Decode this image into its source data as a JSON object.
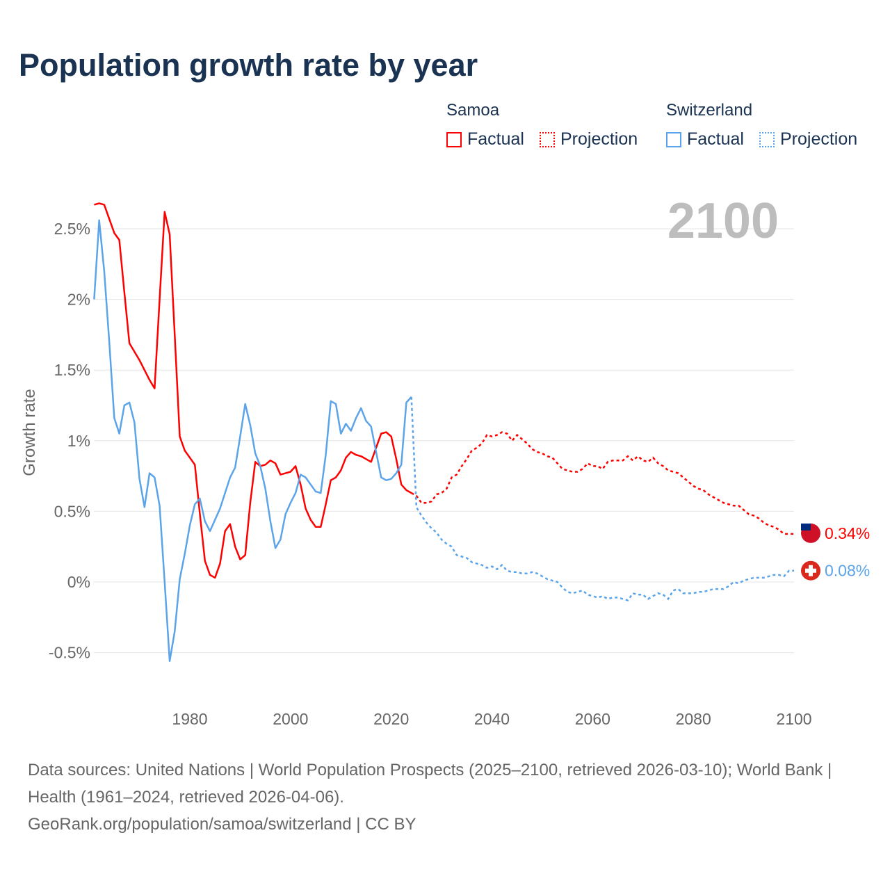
{
  "title": "Population growth rate by year",
  "legend": {
    "groups": [
      {
        "name": "Samoa",
        "color": "#ff0000",
        "factual": "Factual",
        "projection": "Projection"
      },
      {
        "name": "Switzerland",
        "color": "#5ba4ea",
        "factual": "Factual",
        "projection": "Projection"
      }
    ]
  },
  "footer": {
    "sources": "Data sources: United Nations | World Population Prospects (2025–2100, retrieved 2026-03-10); World Bank | Health (1961–2024, retrieved 2026-04-06).",
    "link": "GeoRank.org/population/samoa/switzerland | CC BY"
  },
  "chart_data": {
    "type": "line",
    "title": "Population growth rate by year",
    "ylabel": "Growth rate",
    "xlabel": "",
    "current_year_label": "2100",
    "xlim": [
      1961,
      2100
    ],
    "ylim": [
      -0.7,
      2.8
    ],
    "x_ticks": [
      1980,
      2000,
      2020,
      2040,
      2060,
      2080,
      2100
    ],
    "y_ticks": [
      {
        "v": -0.5,
        "label": "-0.5%"
      },
      {
        "v": 0,
        "label": "0%"
      },
      {
        "v": 0.5,
        "label": "0.5%"
      },
      {
        "v": 1,
        "label": "1%"
      },
      {
        "v": 1.5,
        "label": "1.5%"
      },
      {
        "v": 2,
        "label": "2%"
      },
      {
        "v": 2.5,
        "label": "2.5%"
      }
    ],
    "grid": true,
    "series": [
      {
        "name": "Samoa",
        "color": "#ff0000",
        "end_label": "0.34%",
        "flag_color": "#ce1126",
        "factual_start": 1961,
        "factual": [
          2.67,
          2.68,
          2.67,
          2.57,
          2.47,
          2.42,
          2.05,
          1.69,
          1.63,
          1.57,
          1.5,
          1.43,
          1.37,
          2.0,
          2.62,
          2.46,
          1.75,
          1.03,
          0.93,
          0.88,
          0.83,
          0.48,
          0.15,
          0.05,
          0.03,
          0.13,
          0.36,
          0.41,
          0.25,
          0.16,
          0.19,
          0.56,
          0.85,
          0.82,
          0.83,
          0.86,
          0.84,
          0.76,
          0.77,
          0.78,
          0.82,
          0.69,
          0.52,
          0.44,
          0.39,
          0.39,
          0.55,
          0.72,
          0.74,
          0.79,
          0.88,
          0.92,
          0.9,
          0.89,
          0.87,
          0.85,
          0.95,
          1.05,
          1.06,
          1.03,
          0.87,
          0.69,
          0.65,
          0.63
        ],
        "projection_start": 2025,
        "projection": [
          0.61,
          0.56,
          0.56,
          0.57,
          0.62,
          0.63,
          0.66,
          0.74,
          0.76,
          0.82,
          0.87,
          0.93,
          0.95,
          0.98,
          1.04,
          1.03,
          1.04,
          1.06,
          1.05,
          1.0,
          1.04,
          1.01,
          0.98,
          0.94,
          0.92,
          0.91,
          0.89,
          0.88,
          0.84,
          0.8,
          0.79,
          0.78,
          0.78,
          0.8,
          0.84,
          0.82,
          0.82,
          0.8,
          0.85,
          0.86,
          0.86,
          0.86,
          0.89,
          0.86,
          0.89,
          0.86,
          0.85,
          0.88,
          0.84,
          0.82,
          0.79,
          0.78,
          0.77,
          0.74,
          0.71,
          0.68,
          0.66,
          0.65,
          0.62,
          0.6,
          0.58,
          0.56,
          0.55,
          0.54,
          0.54,
          0.51,
          0.48,
          0.47,
          0.45,
          0.42,
          0.4,
          0.39,
          0.37,
          0.34,
          0.34,
          0.34
        ]
      },
      {
        "name": "Switzerland",
        "color": "#5ba4ea",
        "end_label": "0.08%",
        "flag_color": "#da291c",
        "factual_start": 1961,
        "factual": [
          2.0,
          2.56,
          2.2,
          1.7,
          1.16,
          1.05,
          1.25,
          1.27,
          1.13,
          0.73,
          0.53,
          0.77,
          0.74,
          0.54,
          0.0,
          -0.56,
          -0.35,
          0.02,
          0.2,
          0.4,
          0.55,
          0.59,
          0.43,
          0.36,
          0.44,
          0.52,
          0.63,
          0.74,
          0.81,
          1.03,
          1.26,
          1.11,
          0.91,
          0.82,
          0.66,
          0.43,
          0.24,
          0.3,
          0.48,
          0.56,
          0.63,
          0.76,
          0.74,
          0.69,
          0.64,
          0.63,
          0.9,
          1.28,
          1.26,
          1.05,
          1.12,
          1.07,
          1.16,
          1.23,
          1.14,
          1.1,
          0.92,
          0.74,
          0.72,
          0.73,
          0.77,
          0.83,
          1.27,
          1.31
        ],
        "projection_start": 2025,
        "projection": [
          0.53,
          0.47,
          0.42,
          0.38,
          0.35,
          0.3,
          0.27,
          0.25,
          0.19,
          0.18,
          0.17,
          0.14,
          0.13,
          0.12,
          0.1,
          0.11,
          0.09,
          0.12,
          0.08,
          0.07,
          0.07,
          0.06,
          0.06,
          0.07,
          0.06,
          0.04,
          0.02,
          0.01,
          0.0,
          -0.04,
          -0.07,
          -0.08,
          -0.07,
          -0.06,
          -0.09,
          -0.1,
          -0.11,
          -0.1,
          -0.12,
          -0.11,
          -0.11,
          -0.12,
          -0.13,
          -0.08,
          -0.09,
          -0.09,
          -0.12,
          -0.1,
          -0.08,
          -0.09,
          -0.12,
          -0.06,
          -0.05,
          -0.08,
          -0.08,
          -0.08,
          -0.07,
          -0.07,
          -0.06,
          -0.05,
          -0.05,
          -0.05,
          -0.03,
          0.0,
          -0.01,
          0.01,
          0.02,
          0.03,
          0.03,
          0.03,
          0.04,
          0.05,
          0.05,
          0.04,
          0.08,
          0.08
        ]
      }
    ]
  }
}
